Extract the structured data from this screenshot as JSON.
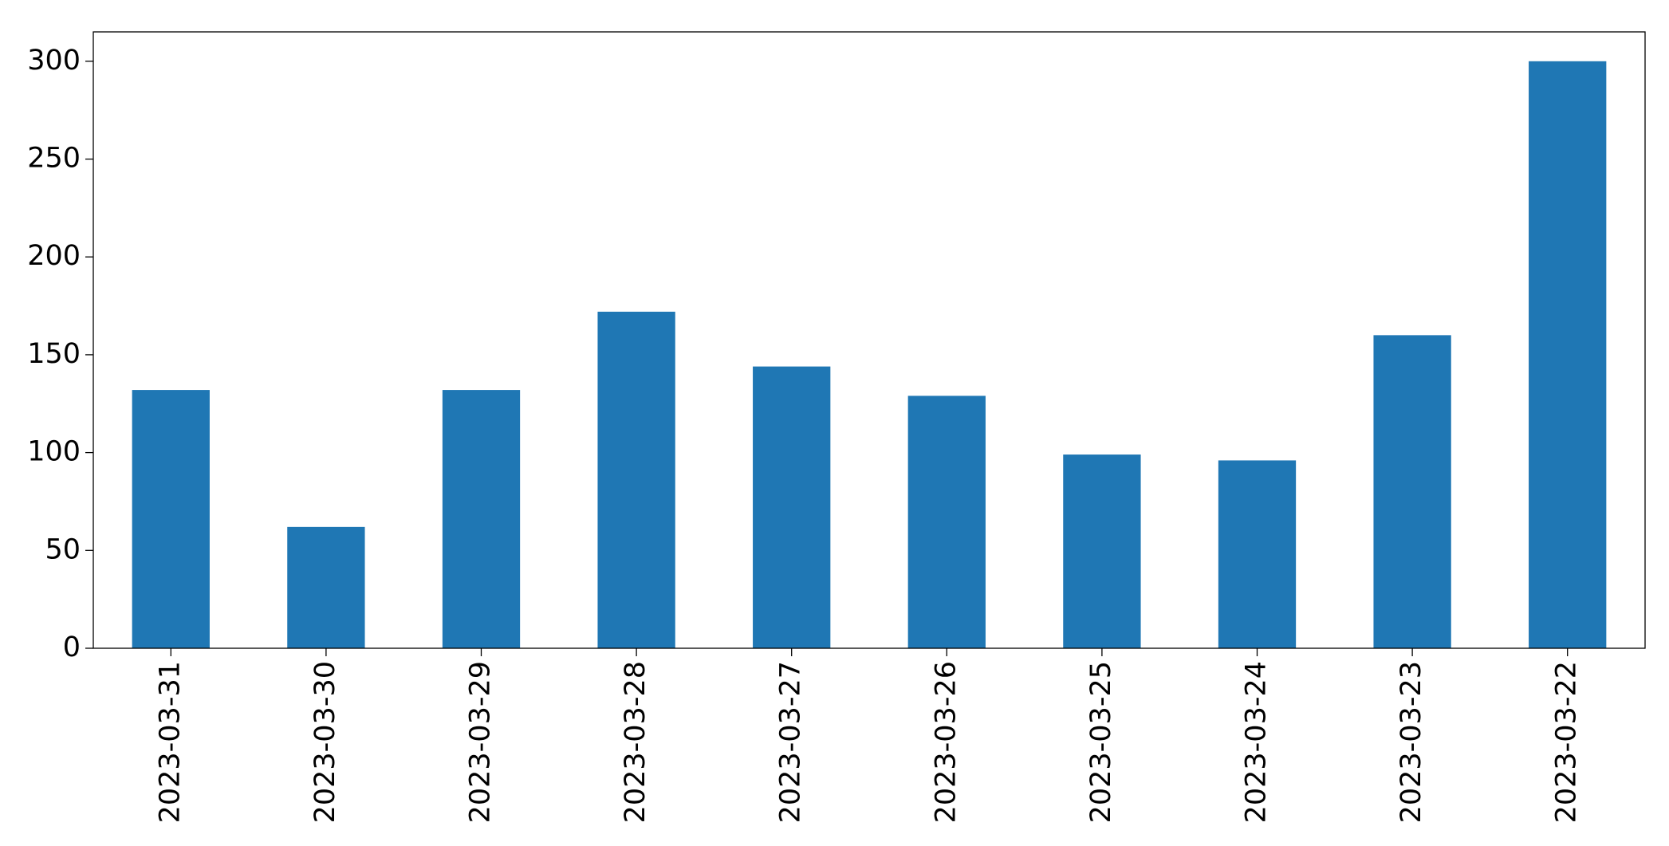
{
  "chart_data": {
    "type": "bar",
    "categories": [
      "2023-03-31",
      "2023-03-30",
      "2023-03-29",
      "2023-03-28",
      "2023-03-27",
      "2023-03-26",
      "2023-03-25",
      "2023-03-24",
      "2023-03-23",
      "2023-03-22"
    ],
    "values": [
      132,
      62,
      132,
      172,
      144,
      129,
      99,
      96,
      160,
      300
    ],
    "color": "#1f77b4",
    "ylim": [
      0,
      315
    ],
    "yticks": [
      0,
      50,
      100,
      150,
      200,
      250,
      300
    ],
    "grid": false
  }
}
